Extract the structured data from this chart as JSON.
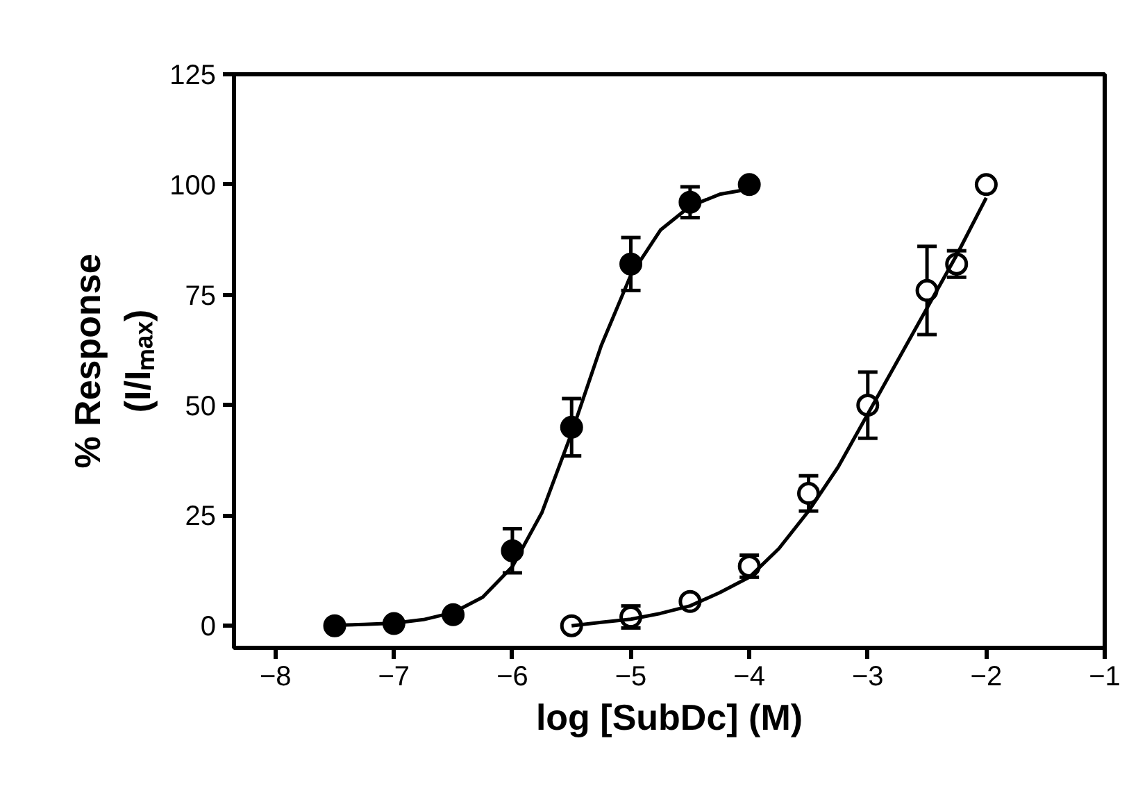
{
  "chart_data": {
    "type": "scatter",
    "xlabel": "log [SubDc] (M)",
    "ylabel": "% Response\n(I/Iₘₐₓ)",
    "xlim": [
      -8.35,
      -1
    ],
    "ylim": [
      -5,
      125
    ],
    "xticks": [
      -8,
      -7,
      -6,
      -5,
      -4,
      -3,
      -2,
      -1
    ],
    "yticks": [
      0,
      25,
      50,
      75,
      100,
      125
    ],
    "grid": false,
    "marker": "circle",
    "series": [
      {
        "color": "#000000",
        "x": [
          -7.5,
          -7,
          -6.5,
          -6,
          -5.5,
          -5,
          -4.5,
          -4
        ],
        "values": [
          0,
          0.5,
          2.5,
          17,
          45,
          82,
          96,
          100
        ],
        "errors": [
          null,
          null,
          null,
          5,
          6.5,
          6,
          3.5,
          null
        ]
      },
      {
        "color": "#ffffff",
        "x": [
          -5.5,
          -5,
          -4.5,
          -4,
          -3.5,
          -3,
          -2.5,
          -2.25,
          -2
        ],
        "values": [
          0,
          2,
          5.5,
          13.5,
          30,
          50,
          76,
          82,
          100
        ],
        "errors": [
          null,
          2.5,
          null,
          2.5,
          4,
          7.5,
          10,
          3,
          null
        ]
      },
      {
        "type": "line",
        "color": "#000000",
        "marker": "none",
        "x": [
          -7.5,
          -7.25,
          -7,
          -6.75,
          -6.5,
          -6.25,
          -6,
          -5.75,
          -5.5,
          -5.25,
          -5,
          -4.75,
          -4.5,
          -4.25,
          -4
        ],
        "values": [
          0.1,
          0.3,
          0.6,
          1.4,
          3,
          6.5,
          13.4,
          25.7,
          43.7,
          63.5,
          79.5,
          89.7,
          95.1,
          97.8,
          99
        ]
      },
      {
        "type": "line",
        "color": "#000000",
        "marker": "none",
        "x": [
          -5.5,
          -5.25,
          -5,
          -4.75,
          -4.5,
          -4.25,
          -4,
          -3.75,
          -3.5,
          -3.25,
          -3,
          -2.75,
          -2.5,
          -2.25,
          -2
        ],
        "values": [
          0,
          0.8,
          1.5,
          2.8,
          4.5,
          7.5,
          11,
          17.5,
          26,
          36,
          48,
          60,
          72,
          84,
          97
        ]
      }
    ]
  }
}
